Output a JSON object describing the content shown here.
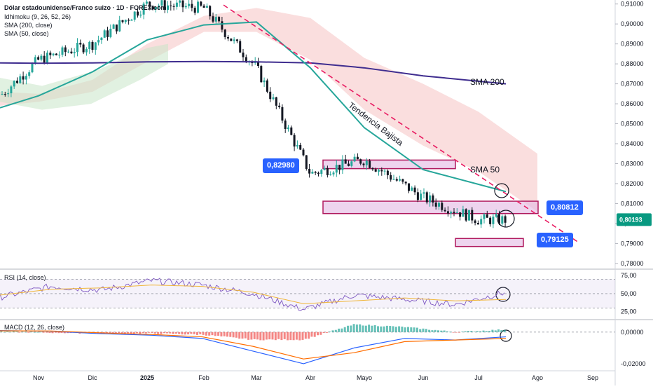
{
  "header": {
    "title": "Dólar estadounidense/Franco suizo · 1D · FOREX.com",
    "indicators": [
      "Idhimoku (9, 26, 52, 26)",
      "SMA (200, close)",
      "SMA (50, close)"
    ]
  },
  "rsi_label": "RSI (14, close)",
  "macd_label": "MACD (12, 26, close)",
  "annotations": {
    "sma200": "SMA 200",
    "sma50": "SMA 50",
    "trend": "Tendencia Bajista"
  },
  "level_tags": [
    {
      "text": "0,82980",
      "value": 0.8298
    },
    {
      "text": "0,80812",
      "value": 0.80812
    },
    {
      "text": "0,79125",
      "value": 0.79125
    }
  ],
  "current_price": {
    "text": "0,80193",
    "value": 0.80193
  },
  "colors": {
    "up": "#26a69a",
    "down": "#131722",
    "sma50": "#26a69a",
    "sma200": "#3f2d8f",
    "trend": "#e91e63",
    "cloud": "#f4b6b6",
    "cloud_green": "#c8e6c9",
    "zone_fill": "#e3b7e3",
    "zone_border": "#b0195e",
    "tag_blue": "#2962ff",
    "tag_green": "#089981",
    "rsi": "#7e57c2",
    "rsi_ma": "#f0b63a",
    "macd": "#2962ff",
    "signal": "#ff6d00"
  },
  "chart_data": [
    {
      "type": "line",
      "title": "Dólar estadounidense/Franco suizo · 1D · FOREX.com",
      "x_tick_labels": [
        "Nov",
        "Dic",
        "2025",
        "Feb",
        "Mar",
        "Abr",
        "Mayo",
        "Jun",
        "Jul",
        "Ago",
        "Sep"
      ],
      "y_tick_labels": [
        "0,91000",
        "0,90000",
        "0,89000",
        "0,88000",
        "0,87000",
        "0,86000",
        "0,85000",
        "0,84000",
        "0,83000",
        "0,82000",
        "0,81000",
        "0,80000",
        "0,79000",
        "0,78000"
      ],
      "ylim": [
        0.7775,
        0.912
      ],
      "series": [
        {
          "name": "SMA (200, close)",
          "x": [
            "Oct",
            "Nov",
            "Dic",
            "Ene",
            "Feb",
            "Mar",
            "Abr",
            "Mayo",
            "Jun",
            "Jul"
          ],
          "values": [
            0.8805,
            0.8803,
            0.8805,
            0.881,
            0.8812,
            0.881,
            0.8805,
            0.878,
            0.874,
            0.87
          ]
        },
        {
          "name": "SMA (50, close)",
          "x": [
            "Oct",
            "Nov",
            "Dic",
            "Ene",
            "Feb",
            "Mar",
            "Abr",
            "Mayo",
            "Jun",
            "Jul"
          ],
          "values": [
            0.858,
            0.864,
            0.876,
            0.892,
            0.8995,
            0.901,
            0.878,
            0.848,
            0.827,
            0.816
          ]
        }
      ],
      "price_path": {
        "dates": [
          "Oct",
          "Nov",
          "Dic",
          "Ene",
          "Feb",
          "Mar",
          "Abr",
          "Mayo",
          "Jun",
          "Jul"
        ],
        "close": [
          0.864,
          0.882,
          0.89,
          0.91,
          0.908,
          0.878,
          0.825,
          0.832,
          0.813,
          0.8019
        ]
      },
      "zones": [
        {
          "from": 0.8275,
          "to": 0.8318
        },
        {
          "from": 0.805,
          "to": 0.8112
        },
        {
          "from": 0.7885,
          "to": 0.7925
        }
      ],
      "trendline": {
        "from": {
          "date": "Feb",
          "price": 0.9095
        },
        "to": {
          "date": "Ago",
          "price": 0.7905
        }
      }
    },
    {
      "type": "line",
      "title": "RSI (14, close)",
      "y_tick_labels": [
        "75,00",
        "50,00",
        "25,00"
      ],
      "ylim": [
        15,
        82
      ],
      "series": [
        {
          "name": "RSI",
          "values": [
            45,
            60,
            55,
            68,
            62,
            50,
            28,
            48,
            42,
            35,
            52
          ]
        },
        {
          "name": "RSI MA",
          "values": [
            48,
            56,
            58,
            62,
            60,
            52,
            36,
            40,
            44,
            40,
            42
          ]
        }
      ]
    },
    {
      "type": "line",
      "title": "MACD (12, 26, close)",
      "y_tick_labels": [
        "0,00000",
        "-0,02000"
      ],
      "ylim": [
        -0.024,
        0.007
      ],
      "series": [
        {
          "name": "MACD",
          "values": [
            0.001,
            0.0005,
            -0.001,
            -0.002,
            -0.004,
            -0.012,
            -0.02,
            -0.01,
            -0.004,
            -0.005,
            -0.003
          ]
        },
        {
          "name": "Signal",
          "values": [
            0.0008,
            0.0007,
            -0.0005,
            -0.0015,
            -0.003,
            -0.009,
            -0.017,
            -0.013,
            -0.006,
            -0.005,
            -0.004
          ]
        }
      ]
    }
  ]
}
